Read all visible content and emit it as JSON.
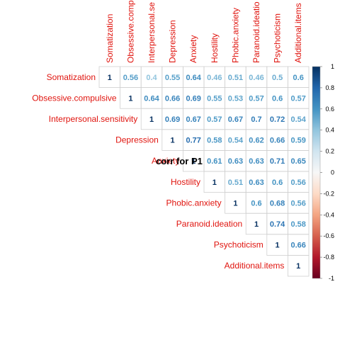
{
  "chart_data": {
    "type": "heatmap",
    "title": "corr for P1",
    "variables": [
      "Somatization",
      "Obsessive.compulsive",
      "Interpersonal.sensitivity",
      "Depression",
      "Anxiety",
      "Hostility",
      "Phobic.anxiety",
      "Paranoid.ideation",
      "Psychoticism",
      "Additional.items"
    ],
    "column_labels_shown": [
      "Somatization",
      "Obsessive.comp",
      "Interpersonal.se",
      "Depression",
      "Anxiety",
      "Hostility",
      "Phobic.anxiety",
      "Paranoid.ideatio",
      "Psychoticism",
      "Additional.items"
    ],
    "matrix": [
      [
        1,
        0.56,
        0.4,
        0.55,
        0.64,
        0.46,
        0.51,
        0.46,
        0.5,
        0.6
      ],
      [
        null,
        1,
        0.64,
        0.66,
        0.69,
        0.55,
        0.53,
        0.57,
        0.6,
        0.57
      ],
      [
        null,
        null,
        1,
        0.69,
        0.67,
        0.57,
        0.67,
        0.7,
        0.72,
        0.54
      ],
      [
        null,
        null,
        null,
        1,
        0.77,
        0.58,
        0.54,
        0.62,
        0.66,
        0.59
      ],
      [
        null,
        null,
        null,
        null,
        1,
        0.61,
        0.63,
        0.63,
        0.71,
        0.65
      ],
      [
        null,
        null,
        null,
        null,
        null,
        1,
        0.51,
        0.63,
        0.6,
        0.56
      ],
      [
        null,
        null,
        null,
        null,
        null,
        null,
        1,
        0.6,
        0.68,
        0.56
      ],
      [
        null,
        null,
        null,
        null,
        null,
        null,
        null,
        1,
        0.74,
        0.58
      ],
      [
        null,
        null,
        null,
        null,
        null,
        null,
        null,
        null,
        1,
        0.66
      ],
      [
        null,
        null,
        null,
        null,
        null,
        null,
        null,
        null,
        null,
        1
      ]
    ],
    "colorbar": {
      "range": [
        -1,
        1
      ],
      "ticks": [
        "1",
        "0.8",
        "0.6",
        "0.4",
        "0.2",
        "0",
        "-0.2",
        "-0.4",
        "-0.6",
        "-0.8",
        "-1"
      ]
    },
    "colors": {
      "negative_end": "#67001f",
      "neutral": "#ffffff",
      "positive_end": "#053061",
      "label": "#e0140e"
    }
  }
}
